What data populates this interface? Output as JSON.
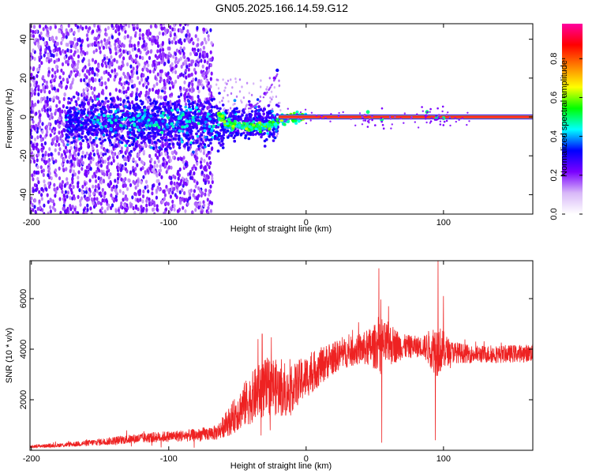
{
  "title": "GN05.2025.166.14.59.G12",
  "chart_data": [
    {
      "type": "heatmap",
      "xlabel": "Height of straight line (km)",
      "ylabel": "Frequency (Hz)",
      "xlim": [
        -201,
        165
      ],
      "ylim": [
        -50,
        48
      ],
      "xticks": [
        -200,
        -100,
        0,
        100
      ],
      "yticks": [
        -40,
        -20,
        0,
        20,
        40
      ],
      "colorbar": {
        "label": "Normalized spectral amplitude",
        "range": [
          0,
          0.98
        ],
        "ticks": [
          0.0,
          0.2,
          0.4,
          0.6,
          0.8
        ],
        "colors": [
          "#ffffff",
          "#d8b8f8",
          "#7a00ff",
          "#0000ff",
          "#00ffff",
          "#00ff00",
          "#ffff00",
          "#ff8000",
          "#ff0000",
          "#ff00a0"
        ]
      },
      "features": {
        "carrier_band_hz": 0,
        "carrier_band_x_range": [
          -20,
          165
        ],
        "noise_region_x_range": [
          -201,
          -68
        ],
        "sidebranch_points": [
          [
            -40,
            6
          ],
          [
            -30,
            12
          ],
          [
            -23,
            20
          ],
          [
            -21,
            24
          ]
        ],
        "drift_points": [
          [
            -60,
            -3
          ],
          [
            -45,
            -5
          ],
          [
            -30,
            -5
          ],
          [
            -15,
            -1
          ],
          [
            0,
            0
          ]
        ]
      }
    },
    {
      "type": "line",
      "xlabel": "Height of straight line (km)",
      "ylabel": "SNR (10 * v/v)",
      "xlim": [
        -201,
        165
      ],
      "ylim": [
        0,
        7500
      ],
      "xticks": [
        -200,
        -100,
        0,
        100
      ],
      "yticks": [
        2000,
        4000,
        6000
      ],
      "series_color": "#ee2222",
      "envelope": [
        {
          "x": -201,
          "mean": 150,
          "amp": 60
        },
        {
          "x": -180,
          "mean": 200,
          "amp": 80
        },
        {
          "x": -160,
          "mean": 280,
          "amp": 120
        },
        {
          "x": -140,
          "mean": 380,
          "amp": 160
        },
        {
          "x": -120,
          "mean": 480,
          "amp": 200
        },
        {
          "x": -100,
          "mean": 550,
          "amp": 220
        },
        {
          "x": -80,
          "mean": 600,
          "amp": 250
        },
        {
          "x": -65,
          "mean": 700,
          "amp": 300
        },
        {
          "x": -55,
          "mean": 1200,
          "amp": 600
        },
        {
          "x": -45,
          "mean": 1800,
          "amp": 900
        },
        {
          "x": -35,
          "mean": 2300,
          "amp": 1100
        },
        {
          "x": -25,
          "mean": 2600,
          "amp": 1200
        },
        {
          "x": -15,
          "mean": 2200,
          "amp": 900
        },
        {
          "x": -5,
          "mean": 2700,
          "amp": 900
        },
        {
          "x": 5,
          "mean": 3100,
          "amp": 800
        },
        {
          "x": 15,
          "mean": 3500,
          "amp": 700
        },
        {
          "x": 25,
          "mean": 3800,
          "amp": 600
        },
        {
          "x": 40,
          "mean": 4000,
          "amp": 600
        },
        {
          "x": 50,
          "mean": 4100,
          "amp": 900
        },
        {
          "x": 60,
          "mean": 4200,
          "amp": 900
        },
        {
          "x": 70,
          "mean": 4100,
          "amp": 500
        },
        {
          "x": 85,
          "mean": 4100,
          "amp": 400
        },
        {
          "x": 95,
          "mean": 4000,
          "amp": 1100
        },
        {
          "x": 105,
          "mean": 3900,
          "amp": 450
        },
        {
          "x": 120,
          "mean": 3800,
          "amp": 350
        },
        {
          "x": 140,
          "mean": 3800,
          "amp": 350
        },
        {
          "x": 165,
          "mean": 3850,
          "amp": 350
        }
      ],
      "spikes": [
        {
          "x": 53,
          "y": 7200
        },
        {
          "x": 55,
          "y": 300
        },
        {
          "x": 96,
          "y": 7500
        },
        {
          "x": 94,
          "y": 400
        },
        {
          "x": 100,
          "y": 6100
        },
        {
          "x": 60,
          "y": 5700
        },
        {
          "x": -35,
          "y": 4400
        },
        {
          "x": -32,
          "y": 4600
        },
        {
          "x": -18,
          "y": 3600
        }
      ]
    }
  ]
}
